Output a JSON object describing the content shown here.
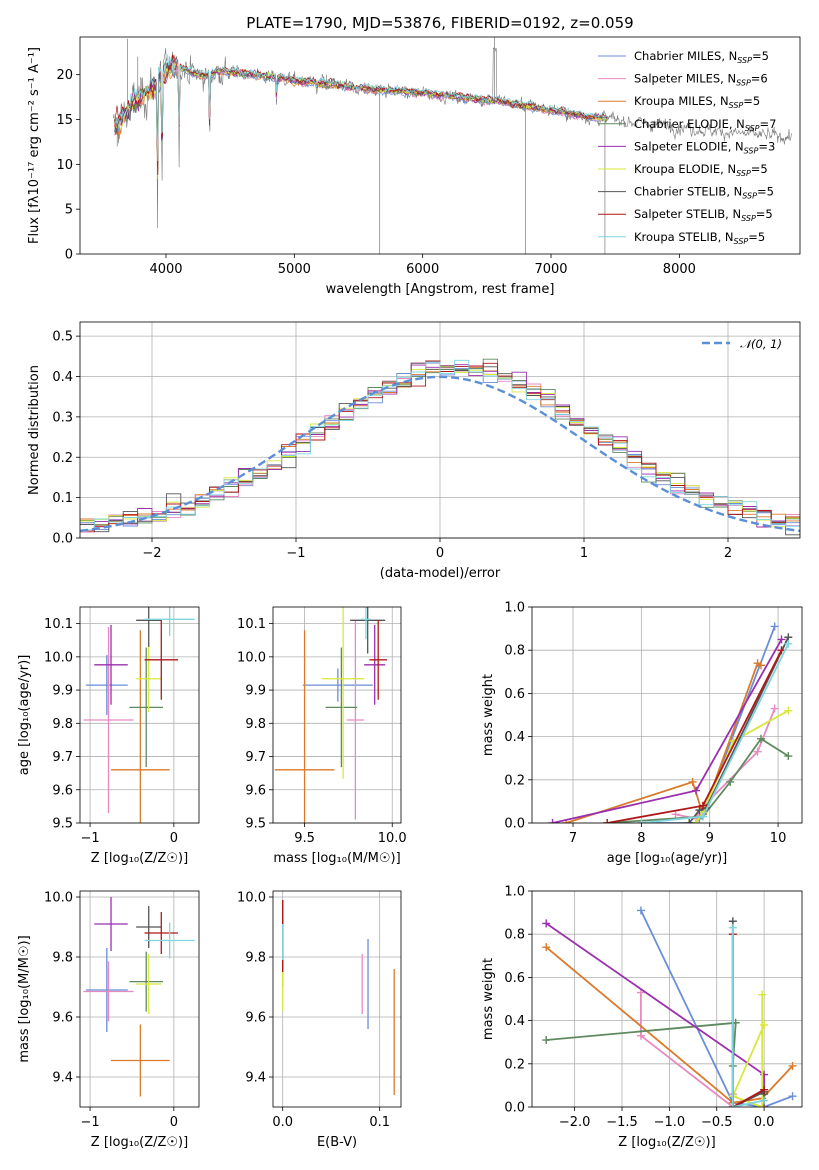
{
  "figure_title": "PLATE=1790, MJD=53876, FIBERID=0192, z=0.059",
  "series_colors": [
    "#6a8ed8",
    "#e78ac3",
    "#d97a2c",
    "#5f8a5f",
    "#9b2fae",
    "#d8e83a",
    "#555555",
    "#b01818",
    "#7fd6df"
  ],
  "chart_data": [
    {
      "id": "spectrum",
      "type": "line",
      "title": "PLATE=1790, MJD=53876, FIBERID=0192, z=0.059",
      "xlabel": "wavelength [Angstrom, rest frame]",
      "ylabel": "Flux [fλ10⁻¹⁷ erg cm⁻² s⁻¹ A⁻¹]",
      "xlim": [
        3330,
        8940
      ],
      "ylim": [
        0,
        24.2
      ],
      "xticks": [
        4000,
        5000,
        6000,
        7000,
        8000
      ],
      "yticks": [
        0,
        5,
        10,
        15,
        20
      ],
      "grid": false,
      "legend_position": "upper right",
      "continuum": {
        "x": [
          3600,
          3700,
          3800,
          3900,
          4000,
          4100,
          4200,
          4300,
          4400,
          4500,
          4700,
          4900,
          5100,
          5300,
          5500,
          5700,
          5900,
          6100,
          6300,
          6500,
          6700,
          6900,
          7100,
          7300,
          7500,
          7700,
          7900,
          8100,
          8300,
          8500,
          8800
        ],
        "y": [
          14.0,
          16.0,
          17.5,
          18.5,
          20.5,
          21.0,
          20.3,
          19.8,
          20.4,
          20.3,
          20.0,
          19.6,
          19.2,
          18.9,
          18.5,
          18.3,
          18.1,
          17.8,
          17.5,
          17.2,
          16.8,
          16.3,
          15.8,
          15.3,
          15.0,
          14.6,
          14.3,
          14.0,
          13.7,
          13.4,
          13.1
        ]
      },
      "series": [
        {
          "name": "Chabrier MILES",
          "nssp": 5
        },
        {
          "name": "Salpeter MILES",
          "nssp": 6
        },
        {
          "name": "Kroupa MILES",
          "nssp": 5
        },
        {
          "name": "Chabrier ELODIE",
          "nssp": 7
        },
        {
          "name": "Salpeter ELODIE",
          "nssp": 3
        },
        {
          "name": "Kroupa ELODIE",
          "nssp": 5
        },
        {
          "name": "Chabrier STELIB",
          "nssp": 5
        },
        {
          "name": "Salpeter STELIB",
          "nssp": 5
        },
        {
          "name": "Kroupa STELIB",
          "nssp": 5
        }
      ],
      "nssp_prefix": "N",
      "nssp_sub": "SSP"
    },
    {
      "id": "residuals",
      "type": "histogram",
      "xlabel": "(data-model)/error",
      "ylabel": "Normed distribution",
      "xlim": [
        -2.5,
        2.5
      ],
      "ylim": [
        0,
        0.535
      ],
      "xticks": [
        -2,
        -1,
        0,
        1,
        2
      ],
      "yticks": [
        0.0,
        0.1,
        0.2,
        0.3,
        0.4,
        0.5
      ],
      "grid": true,
      "legend_position": "upper right",
      "reference_label": "𝒩(0, 1)",
      "bin_width": 0.1,
      "bins_start": -2.5
    },
    {
      "id": "age_vs_Z",
      "type": "scatter",
      "xlabel": "Z [log₁₀(Z/Z☉)]",
      "ylabel": "age  [log₁₀(age/yr)]",
      "xlim": [
        -1.12,
        0.3
      ],
      "ylim": [
        9.5,
        10.15
      ],
      "xticks": [
        -1,
        0
      ],
      "yticks": [
        9.5,
        9.6,
        9.7,
        9.8,
        9.9,
        10.0,
        10.1
      ],
      "grid": true,
      "points": [
        {
          "x": -0.8,
          "xerr": 0.25,
          "y": 9.915,
          "yerr": 0.09
        },
        {
          "x": -0.78,
          "xerr": 0.3,
          "y": 9.81,
          "yerr": 0.28
        },
        {
          "x": -0.4,
          "xerr": 0.35,
          "y": 9.66,
          "yerr": 0.42
        },
        {
          "x": -0.33,
          "xerr": 0.2,
          "y": 9.848,
          "yerr": 0.18
        },
        {
          "x": -0.75,
          "xerr": 0.2,
          "y": 9.976,
          "yerr": 0.12
        },
        {
          "x": -0.3,
          "xerr": 0.15,
          "y": 9.934,
          "yerr": 0.1
        },
        {
          "x": -0.3,
          "xerr": 0.15,
          "y": 10.11,
          "yerr": 0.08
        },
        {
          "x": -0.15,
          "xerr": 0.2,
          "y": 9.991,
          "yerr": 0.12
        },
        {
          "x": -0.05,
          "xerr": 0.3,
          "y": 10.113,
          "yerr": 0.05
        }
      ]
    },
    {
      "id": "age_vs_mass",
      "type": "scatter",
      "xlabel": "mass [log₁₀(M/M☉)]",
      "ylabel": "",
      "xlim": [
        9.32,
        10.05
      ],
      "ylim": [
        9.5,
        10.15
      ],
      "xticks": [
        9.5,
        10.0
      ],
      "yticks": [
        9.5,
        9.6,
        9.7,
        9.8,
        9.9,
        10.0,
        10.1
      ],
      "grid": true,
      "points": [
        {
          "x": 9.69,
          "xerr": 0.2,
          "y": 9.915,
          "yerr": 0.05
        },
        {
          "x": 9.79,
          "xerr": 0.05,
          "y": 9.81,
          "yerr": 0.3
        },
        {
          "x": 9.5,
          "xerr": 0.17,
          "y": 9.66,
          "yerr": 0.42
        },
        {
          "x": 9.71,
          "xerr": 0.09,
          "y": 9.848,
          "yerr": 0.18
        },
        {
          "x": 9.9,
          "xerr": 0.06,
          "y": 9.976,
          "yerr": 0.12
        },
        {
          "x": 9.72,
          "xerr": 0.12,
          "y": 9.934,
          "yerr": 0.3
        },
        {
          "x": 9.86,
          "xerr": 0.1,
          "y": 10.11,
          "yerr": 0.1
        },
        {
          "x": 9.92,
          "xerr": 0.05,
          "y": 9.991,
          "yerr": 0.12
        },
        {
          "x": 9.85,
          "xerr": 0.03,
          "y": 10.113,
          "yerr": 0.06
        }
      ]
    },
    {
      "id": "massweight_vs_age",
      "type": "line",
      "xlabel": "age  [log₁₀(age/yr)]",
      "ylabel": "mass weight",
      "xlim": [
        6.4,
        10.35
      ],
      "ylim": [
        0,
        1
      ],
      "xticks": [
        7,
        8,
        9,
        10
      ],
      "yticks": [
        0.0,
        0.2,
        0.4,
        0.6,
        0.8,
        1.0
      ],
      "grid": true,
      "series": [
        {
          "x": [
            8.0,
            8.8,
            8.85,
            8.9,
            9.95
          ],
          "y": [
            0.0,
            0.0,
            0.02,
            0.04,
            0.91
          ]
        },
        {
          "x": [
            8.5,
            8.8,
            8.85,
            9.7,
            9.95
          ],
          "y": [
            0.04,
            0.02,
            0.06,
            0.33,
            0.53
          ]
        },
        {
          "x": [
            6.9,
            8.75,
            8.9,
            9.7,
            9.75
          ],
          "y": [
            0.0,
            0.19,
            0.04,
            0.74,
            0.73
          ]
        },
        {
          "x": [
            7.5,
            8.9,
            9.3,
            9.75,
            10.15
          ],
          "y": [
            0.0,
            0.03,
            0.19,
            0.39,
            0.31
          ]
        },
        {
          "x": [
            6.7,
            8.8,
            10.05
          ],
          "y": [
            0.0,
            0.15,
            0.85
          ]
        },
        {
          "x": [
            8.8,
            8.9,
            9.35,
            10.15
          ],
          "y": [
            0.0,
            0.05,
            0.38,
            0.52
          ]
        },
        {
          "x": [
            8.7,
            8.85,
            8.95,
            10.15
          ],
          "y": [
            0.0,
            0.06,
            0.07,
            0.86
          ]
        },
        {
          "x": [
            7.5,
            8.9,
            10.05
          ],
          "y": [
            0.0,
            0.08,
            0.8
          ]
        },
        {
          "x": [
            8.0,
            8.9,
            10.15
          ],
          "y": [
            0.0,
            0.03,
            0.83
          ]
        }
      ]
    },
    {
      "id": "mass_vs_Z",
      "type": "scatter",
      "xlabel": "Z [log₁₀(Z/Z☉)]",
      "ylabel": "mass [log₁₀(M/M☉)]",
      "xlim": [
        -1.12,
        0.3
      ],
      "ylim": [
        9.3,
        10.02
      ],
      "xticks": [
        -1,
        0
      ],
      "yticks": [
        9.4,
        9.6,
        9.8,
        10.0
      ],
      "grid": true,
      "points": [
        {
          "x": -0.8,
          "xerr": 0.25,
          "y": 9.69,
          "yerr": 0.14
        },
        {
          "x": -0.78,
          "xerr": 0.3,
          "y": 9.685,
          "yerr": 0.1
        },
        {
          "x": -0.4,
          "xerr": 0.35,
          "y": 9.455,
          "yerr": 0.12
        },
        {
          "x": -0.33,
          "xerr": 0.2,
          "y": 9.718,
          "yerr": 0.1
        },
        {
          "x": -0.75,
          "xerr": 0.2,
          "y": 9.91,
          "yerr": 0.09
        },
        {
          "x": -0.3,
          "xerr": 0.15,
          "y": 9.71,
          "yerr": 0.1
        },
        {
          "x": -0.3,
          "xerr": 0.15,
          "y": 9.9,
          "yerr": 0.07
        },
        {
          "x": -0.15,
          "xerr": 0.2,
          "y": 9.88,
          "yerr": 0.07
        },
        {
          "x": -0.05,
          "xerr": 0.3,
          "y": 9.855,
          "yerr": 0.06
        }
      ]
    },
    {
      "id": "mass_vs_ebv",
      "type": "scatter",
      "xlabel": "E(B-V)",
      "ylabel": "",
      "xlim": [
        -0.01,
        0.122
      ],
      "ylim": [
        9.3,
        10.02
      ],
      "xticks": [
        0.0,
        0.1
      ],
      "yticks": [
        9.4,
        9.6,
        9.8,
        10.0
      ],
      "grid": true,
      "points": [
        {
          "x": 0.088,
          "y": 9.71,
          "yerr": 0.15
        },
        {
          "x": 0.082,
          "y": 9.71,
          "yerr": 0.1
        },
        {
          "x": 0.115,
          "y": 9.55,
          "yerr": 0.21
        },
        {
          "x": 0.0,
          "y": 9.8,
          "yerr": 0.1
        },
        {
          "x": 0.0,
          "y": 9.9,
          "yerr": 0.08
        },
        {
          "x": 0.0,
          "y": 9.7,
          "yerr": 0.08
        },
        {
          "x": 0.0,
          "y": 9.87,
          "yerr": 0.12
        },
        {
          "x": 0.0,
          "y": 9.87,
          "yerr": 0.12
        },
        {
          "x": 0.0,
          "y": 9.85,
          "yerr": 0.06
        }
      ]
    },
    {
      "id": "massweight_vs_Z",
      "type": "line",
      "xlabel": "Z [log₁₀(Z/Z☉)]",
      "ylabel": "mass weight",
      "xlim": [
        -2.45,
        0.4
      ],
      "ylim": [
        0,
        1
      ],
      "xticks": [
        -2.0,
        -1.5,
        -1.0,
        -0.5,
        0.0
      ],
      "yticks": [
        0.0,
        0.2,
        0.4,
        0.6,
        0.8,
        1.0
      ],
      "grid": true,
      "series": [
        {
          "x": [
            -1.3,
            -0.33,
            0.0,
            0.3
          ],
          "y": [
            0.91,
            0.02,
            0.0,
            0.05
          ]
        },
        {
          "x": [
            -1.3,
            -1.3,
            -0.33,
            -0.33
          ],
          "y": [
            0.53,
            0.33,
            0.0,
            0.06
          ]
        },
        {
          "x": [
            -2.3,
            -0.33,
            -0.02,
            0.3
          ],
          "y": [
            0.74,
            0.02,
            0.04,
            0.19
          ]
        },
        {
          "x": [
            -2.3,
            -0.3,
            -0.33
          ],
          "y": [
            0.31,
            0.39,
            0.19
          ]
        },
        {
          "x": [
            -2.3,
            0.0,
            0.0
          ],
          "y": [
            0.85,
            0.15,
            0.0
          ]
        },
        {
          "x": [
            0.0,
            -0.33,
            -0.02,
            -0.02
          ],
          "y": [
            0.38,
            0.05,
            0.0,
            0.52
          ]
        },
        {
          "x": [
            -0.33,
            -0.33,
            0.0,
            0.0
          ],
          "y": [
            0.86,
            0.0,
            0.07,
            0.06
          ]
        },
        {
          "x": [
            -0.33,
            -0.33,
            0.0
          ],
          "y": [
            0.8,
            0.0,
            0.08
          ]
        },
        {
          "x": [
            -0.33,
            -0.33,
            0.0
          ],
          "y": [
            0.83,
            0.0,
            0.03
          ]
        }
      ]
    }
  ]
}
